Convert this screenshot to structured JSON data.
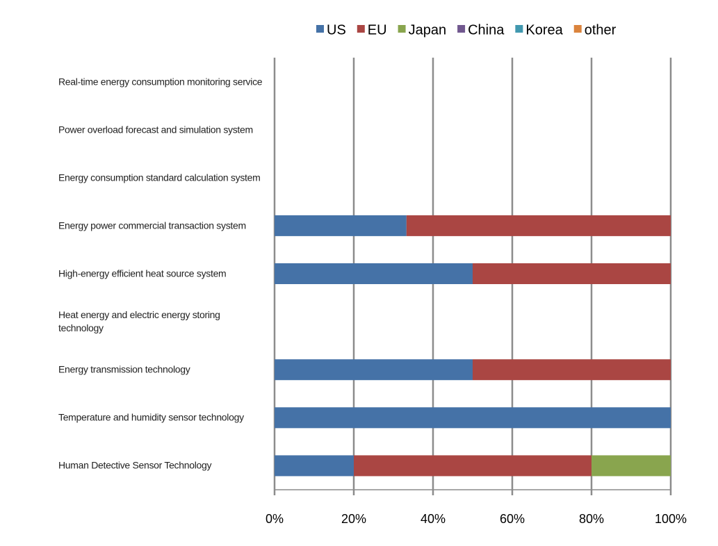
{
  "chart_data": {
    "type": "bar",
    "orientation": "horizontal",
    "stacked": true,
    "categories": [
      "Real-time energy consumption monitoring service",
      "Power overload forecast and simulation system",
      "Energy consumption standard calculation system",
      "Energy power commercial transaction system",
      "High-energy efficient heat source system",
      "Heat energy and electric energy storing technology",
      "Energy transmission technology",
      "Temperature and humidity sensor technology",
      "Human Detective Sensor Technology"
    ],
    "series": [
      {
        "name": "US",
        "color": "#4572a7",
        "values": [
          0,
          0,
          0,
          33.3,
          50,
          0,
          50,
          100,
          20
        ]
      },
      {
        "name": "EU",
        "color": "#aa4643",
        "values": [
          0,
          0,
          0,
          66.7,
          50,
          0,
          50,
          0,
          60
        ]
      },
      {
        "name": "Japan",
        "color": "#89a54e",
        "values": [
          0,
          0,
          0,
          0,
          0,
          0,
          0,
          0,
          20
        ]
      },
      {
        "name": "China",
        "color": "#71588f",
        "values": [
          0,
          0,
          0,
          0,
          0,
          0,
          0,
          0,
          0
        ]
      },
      {
        "name": "Korea",
        "color": "#4198af",
        "values": [
          0,
          0,
          0,
          0,
          0,
          0,
          0,
          0,
          0
        ]
      },
      {
        "name": "other",
        "color": "#db843d",
        "values": [
          0,
          0,
          0,
          0,
          0,
          0,
          0,
          0,
          0
        ]
      }
    ],
    "xlim": [
      0,
      100
    ],
    "xticks": [
      {
        "value": 0,
        "label": "0%"
      },
      {
        "value": 20,
        "label": "20%"
      },
      {
        "value": 40,
        "label": "40%"
      },
      {
        "value": 60,
        "label": "60%"
      },
      {
        "value": 80,
        "label": "80%"
      },
      {
        "value": 100,
        "label": "100%"
      }
    ],
    "grid": true,
    "legend": "top"
  }
}
